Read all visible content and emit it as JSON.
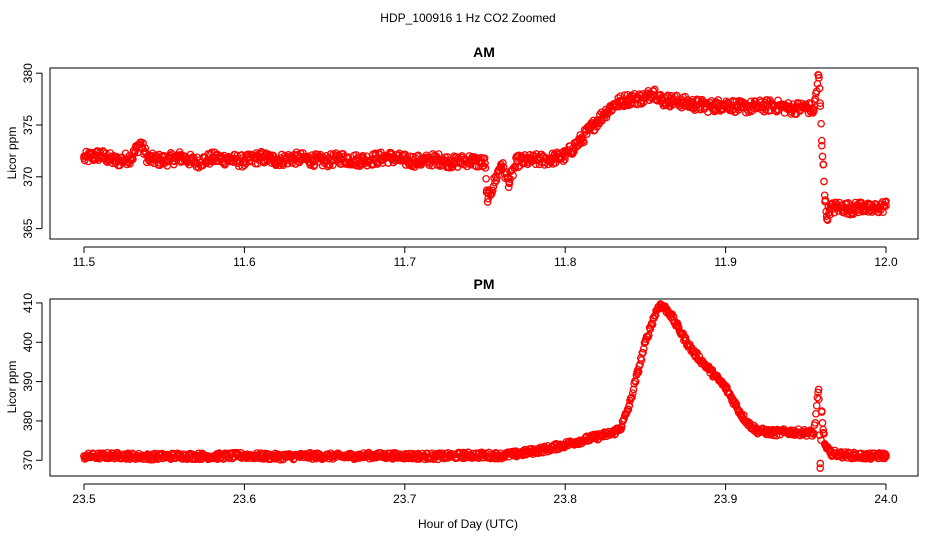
{
  "figure": {
    "suptitle": "HDP_100916  1 Hz CO2 Zoomed",
    "xlabel": "Hour of Day (UTC)"
  },
  "colors": {
    "points": "#ff0000",
    "axes": "#000000",
    "background": "#ffffff"
  },
  "chart_data": [
    {
      "type": "scatter",
      "title": "AM",
      "xlabel": "",
      "ylabel": "Licor ppm",
      "xlim": [
        11.5,
        12.0
      ],
      "ylim": [
        364.0,
        380.5
      ],
      "xticks": [
        11.5,
        11.6,
        11.7,
        11.8,
        11.9,
        12.0
      ],
      "xtick_labels": [
        "11.5",
        "11.6",
        "11.7",
        "11.8",
        "11.9",
        "12.0"
      ],
      "yticks": [
        365,
        370,
        375,
        380
      ],
      "ytick_labels": [
        "365",
        "370",
        "375",
        "380"
      ],
      "marker": "open-circle",
      "grid": false,
      "series": [
        {
          "x": [
            11.5,
            11.51,
            11.52,
            11.53,
            11.535,
            11.54,
            11.55,
            11.56,
            11.57,
            11.58,
            11.59,
            11.6,
            11.61,
            11.62,
            11.63,
            11.64,
            11.65,
            11.66,
            11.67,
            11.68,
            11.69,
            11.7,
            11.71,
            11.72,
            11.73,
            11.74,
            11.75,
            11.751,
            11.752,
            11.76,
            11.765,
            11.77,
            11.78,
            11.79,
            11.8,
            11.805,
            11.81,
            11.815,
            11.82,
            11.825,
            11.83,
            11.835,
            11.84,
            11.85,
            11.855,
            11.86,
            11.87,
            11.88,
            11.89,
            11.9,
            11.91,
            11.92,
            11.93,
            11.94,
            11.95,
            11.955,
            11.958,
            11.959,
            11.96,
            11.961,
            11.962,
            11.963,
            11.965,
            11.97,
            11.975,
            11.98,
            11.985,
            11.99,
            11.995,
            12.0
          ],
          "y": [
            371.8,
            372.1,
            371.5,
            371.9,
            373.3,
            371.7,
            371.6,
            371.9,
            371.4,
            371.8,
            371.7,
            371.5,
            371.9,
            371.6,
            371.8,
            371.7,
            371.5,
            371.8,
            371.6,
            371.7,
            371.9,
            371.6,
            371.5,
            371.7,
            371.4,
            371.6,
            371.3,
            368.5,
            367.9,
            371.2,
            369.5,
            371.5,
            371.6,
            371.7,
            372.0,
            372.8,
            373.6,
            374.5,
            375.4,
            376.2,
            376.9,
            377.3,
            377.5,
            377.6,
            378.3,
            377.4,
            377.3,
            377.0,
            376.8,
            377.0,
            376.7,
            376.8,
            376.9,
            376.6,
            376.7,
            376.5,
            379.8,
            377.1,
            373.0,
            371.2,
            367.6,
            366.2,
            366.9,
            367.1,
            367.0,
            366.9,
            367.2,
            366.8,
            367.0,
            367.2
          ],
          "band_half_width": 0.6
        }
      ]
    },
    {
      "type": "scatter",
      "title": "PM",
      "xlabel": "Hour of Day (UTC)",
      "ylabel": "Licor ppm",
      "xlim": [
        23.5,
        24.0
      ],
      "ylim": [
        366.0,
        411.0
      ],
      "xticks": [
        23.5,
        23.6,
        23.7,
        23.8,
        23.9,
        24.0
      ],
      "xtick_labels": [
        "23.5",
        "23.6",
        "23.7",
        "23.8",
        "23.9",
        "24.0"
      ],
      "yticks": [
        370,
        380,
        390,
        400,
        410
      ],
      "ytick_labels": [
        "370",
        "380",
        "390",
        "400",
        "410"
      ],
      "marker": "open-circle",
      "grid": false,
      "series": [
        {
          "x": [
            23.5,
            23.52,
            23.54,
            23.56,
            23.58,
            23.6,
            23.62,
            23.64,
            23.66,
            23.68,
            23.7,
            23.72,
            23.74,
            23.76,
            23.77,
            23.78,
            23.79,
            23.8,
            23.81,
            23.82,
            23.83,
            23.835,
            23.84,
            23.845,
            23.85,
            23.855,
            23.858,
            23.86,
            23.865,
            23.87,
            23.875,
            23.88,
            23.89,
            23.9,
            23.905,
            23.91,
            23.915,
            23.92,
            23.93,
            23.94,
            23.95,
            23.955,
            23.958,
            23.959,
            23.96,
            23.961,
            23.962,
            23.963,
            23.965,
            23.97,
            23.98,
            23.99,
            24.0
          ],
          "y": [
            371.0,
            371.2,
            370.9,
            371.1,
            371.0,
            371.2,
            370.9,
            371.1,
            371.0,
            371.2,
            371.1,
            371.0,
            371.3,
            371.2,
            371.6,
            372.3,
            373.0,
            374.0,
            375.0,
            376.0,
            377.0,
            378.5,
            384.0,
            392.0,
            400.0,
            406.0,
            409.0,
            409.5,
            407.5,
            404.0,
            400.5,
            397.5,
            393.0,
            388.5,
            385.0,
            381.5,
            379.0,
            377.5,
            377.0,
            377.2,
            377.0,
            376.8,
            388.0,
            368.0,
            382.5,
            377.0,
            374.0,
            373.0,
            372.0,
            371.5,
            371.2,
            371.0,
            371.2
          ],
          "band_half_width": 0.8
        }
      ]
    }
  ]
}
